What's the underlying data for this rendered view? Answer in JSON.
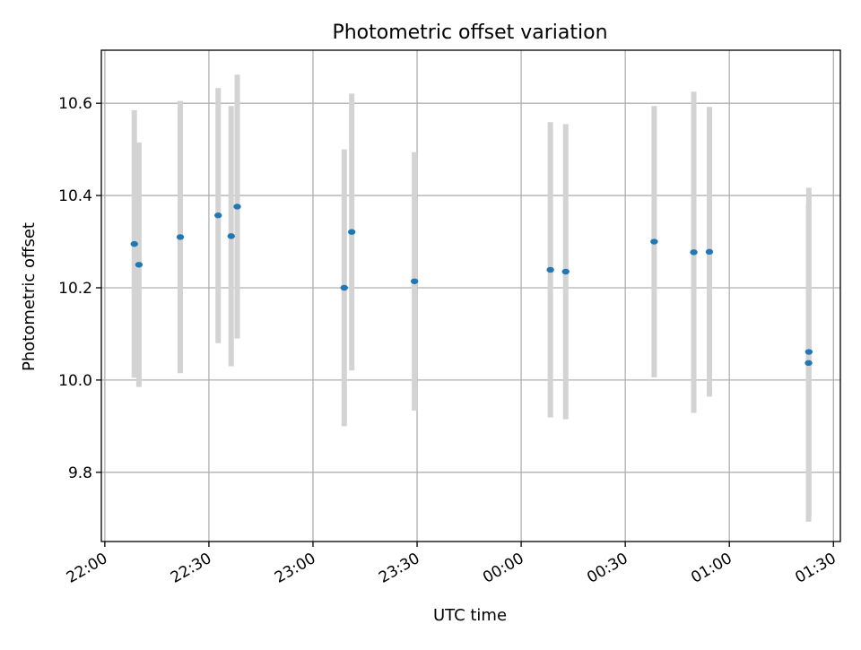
{
  "chart_data": {
    "type": "scatter",
    "title": "Photometric offset variation",
    "xlabel": "UTC time",
    "ylabel": "Photometric offset",
    "x_ticks": [
      "22:00",
      "22:30",
      "23:00",
      "23:30",
      "00:00",
      "00:30",
      "01:00",
      "01:30"
    ],
    "y_ticks": [
      "9.8",
      "10.0",
      "10.2",
      "10.4",
      "10.6"
    ],
    "y_tick_values": [
      9.8,
      10.0,
      10.2,
      10.4,
      10.6
    ],
    "xlim": [
      "21:59",
      "01:32"
    ],
    "ylim": [
      9.65,
      10.715
    ],
    "grid": true,
    "points": [
      {
        "time": "22:08:30",
        "y": 10.295,
        "ylow": 10.005,
        "yhigh": 10.585
      },
      {
        "time": "22:09:50",
        "y": 10.25,
        "ylow": 9.985,
        "yhigh": 10.515
      },
      {
        "time": "22:21:45",
        "y": 10.31,
        "ylow": 10.015,
        "yhigh": 10.605
      },
      {
        "time": "22:32:40",
        "y": 10.357,
        "ylow": 10.08,
        "yhigh": 10.633
      },
      {
        "time": "22:36:25",
        "y": 10.312,
        "ylow": 10.03,
        "yhigh": 10.594
      },
      {
        "time": "22:38:10",
        "y": 10.376,
        "ylow": 10.09,
        "yhigh": 10.662
      },
      {
        "time": "23:09:00",
        "y": 10.2,
        "ylow": 9.9,
        "yhigh": 10.5
      },
      {
        "time": "23:11:10",
        "y": 10.321,
        "ylow": 10.021,
        "yhigh": 10.621
      },
      {
        "time": "23:29:15",
        "y": 10.214,
        "ylow": 9.934,
        "yhigh": 10.494
      },
      {
        "time": "00:08:25",
        "y": 10.239,
        "ylow": 9.919,
        "yhigh": 10.559
      },
      {
        "time": "00:12:50",
        "y": 10.235,
        "ylow": 9.915,
        "yhigh": 10.555
      },
      {
        "time": "00:38:20",
        "y": 10.3,
        "ylow": 10.006,
        "yhigh": 10.594
      },
      {
        "time": "00:49:45",
        "y": 10.277,
        "ylow": 9.929,
        "yhigh": 10.625
      },
      {
        "time": "00:54:15",
        "y": 10.278,
        "ylow": 9.964,
        "yhigh": 10.592
      },
      {
        "time": "01:22:55",
        "y": 10.061,
        "ylow": 9.705,
        "yhigh": 10.417
      },
      {
        "time": "01:22:50",
        "y": 10.037,
        "ylow": 9.693,
        "yhigh": 10.381
      }
    ],
    "colors": {
      "point": "#1f77b4",
      "errorbar": "#d3d3d3",
      "grid": "#b0b0b0",
      "axes": "#000000"
    }
  }
}
